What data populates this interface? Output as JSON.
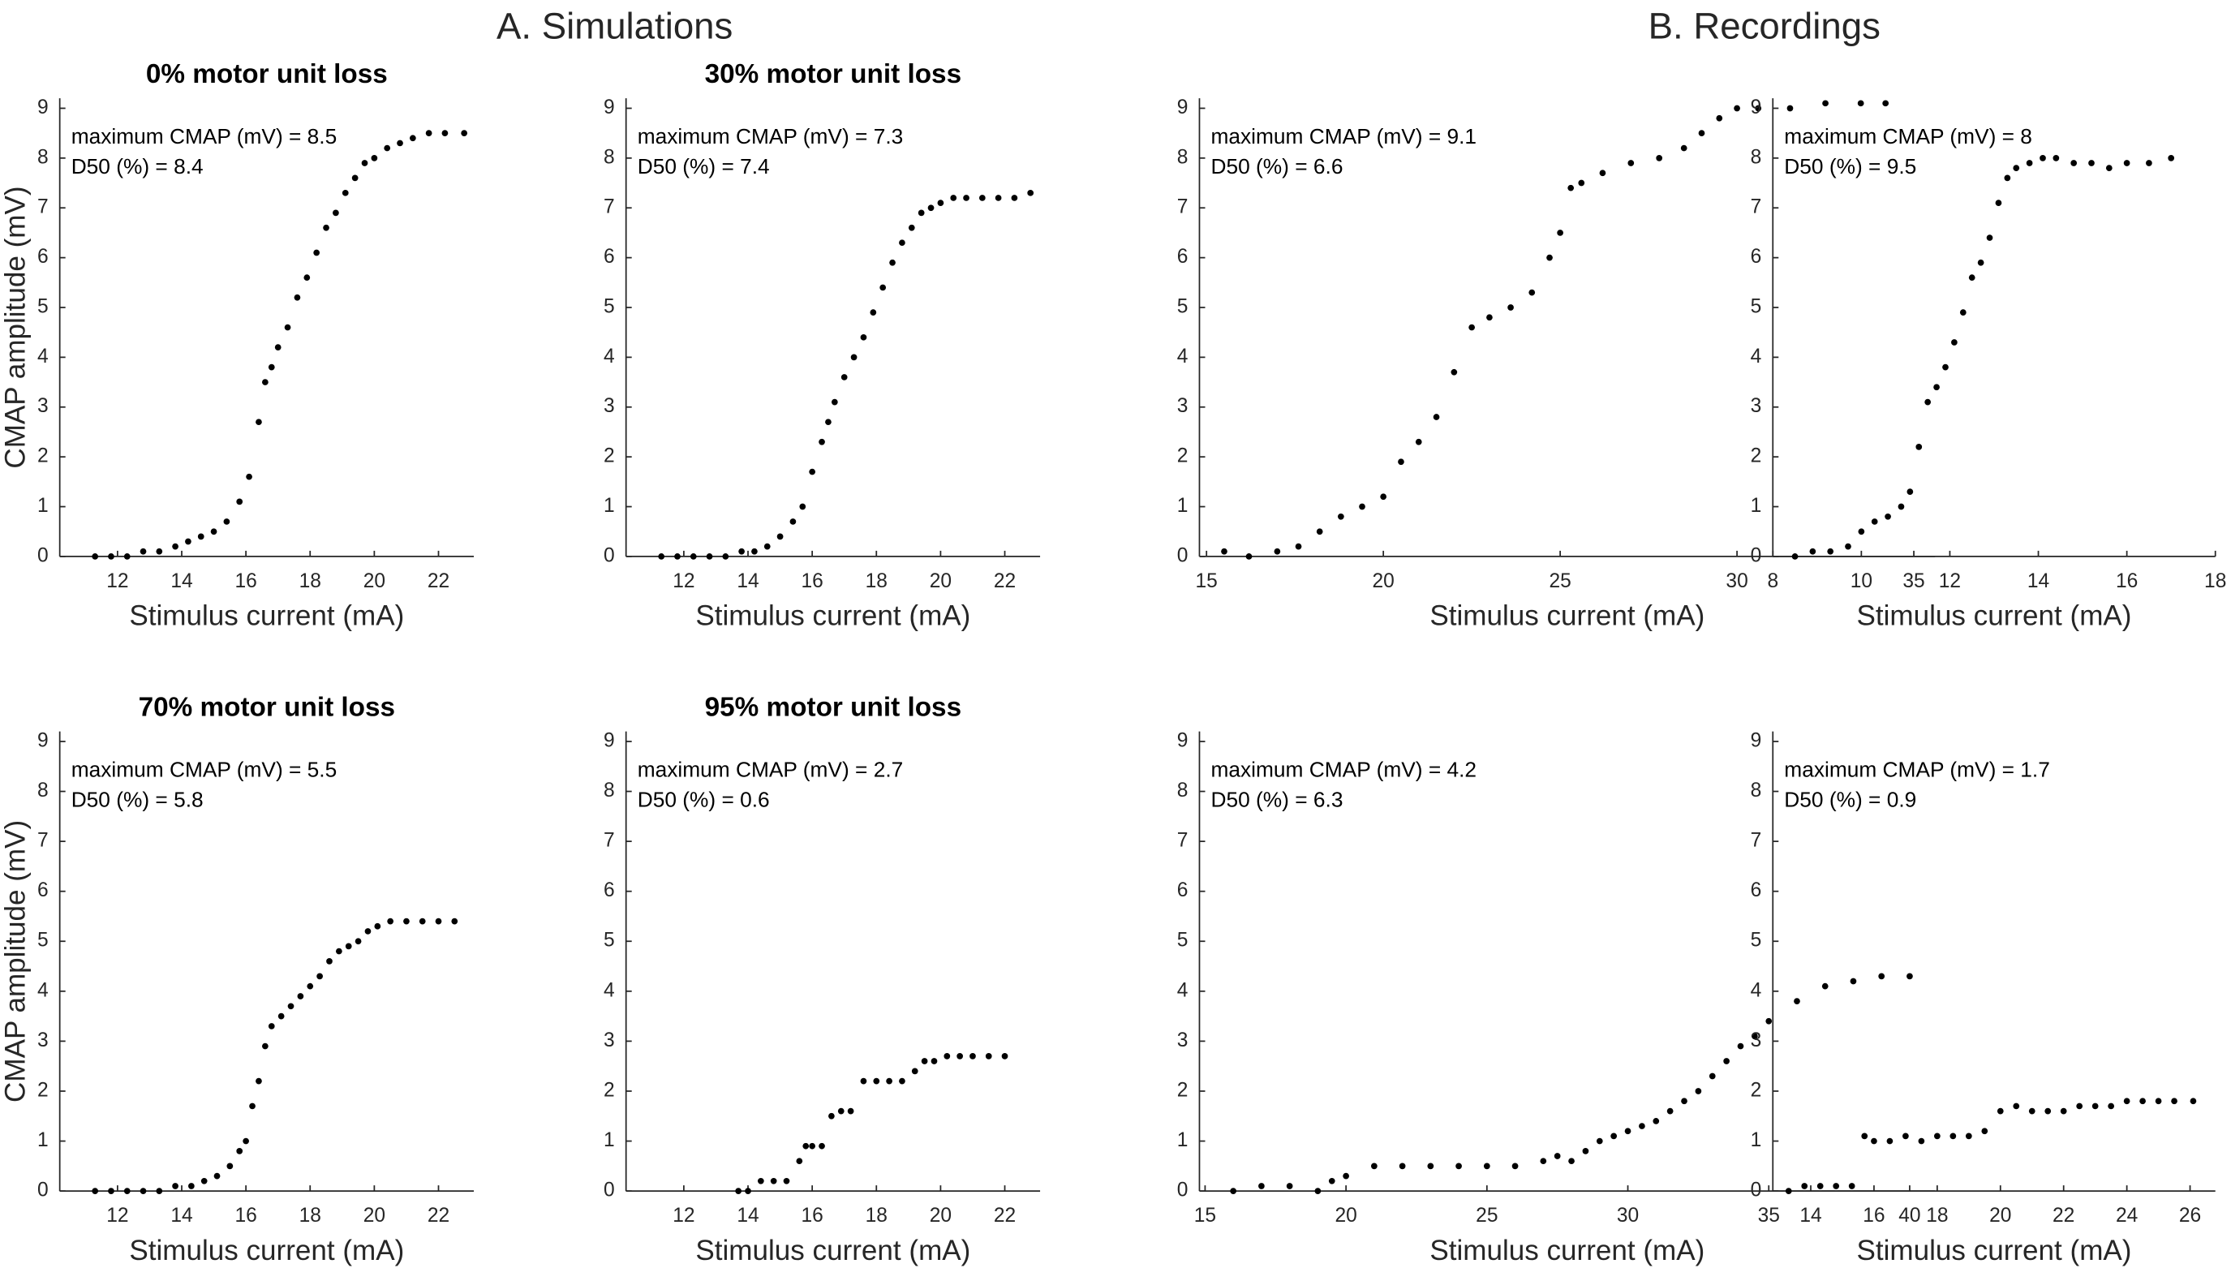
{
  "sections": [
    "A. Simulations",
    "B. Recordings"
  ],
  "chart_data": [
    {
      "type": "scatter",
      "title": "0% motor unit loss",
      "annotations": [
        "maximum CMAP (mV) = 8.5",
        "D50 (%) = 8.4"
      ],
      "xlabel": "Stimulus current (mA)",
      "ylabel": "CMAP amplitude (mV)",
      "color": "#000000",
      "x": [
        11.3,
        11.8,
        12.3,
        12.8,
        13.3,
        13.8,
        14.2,
        14.6,
        15.0,
        15.4,
        15.8,
        16.1,
        16.4,
        16.6,
        16.8,
        17.0,
        17.3,
        17.6,
        17.9,
        18.2,
        18.5,
        18.8,
        19.1,
        19.4,
        19.7,
        20.0,
        20.4,
        20.8,
        21.2,
        21.7,
        22.2,
        22.8
      ],
      "values": [
        0,
        0,
        0,
        0.1,
        0.1,
        0.2,
        0.3,
        0.4,
        0.5,
        0.7,
        1.1,
        1.6,
        2.7,
        3.5,
        3.8,
        4.2,
        4.6,
        5.2,
        5.6,
        6.1,
        6.6,
        6.9,
        7.3,
        7.6,
        7.9,
        8.0,
        8.2,
        8.3,
        8.4,
        8.5,
        8.5,
        8.5
      ],
      "xlim": [
        10.2,
        23.1
      ],
      "ylim": [
        0,
        9.2
      ],
      "xticks": [
        12,
        14,
        16,
        18,
        20,
        22
      ],
      "yticks": [
        0,
        1,
        2,
        3,
        4,
        5,
        6,
        7,
        8,
        9
      ]
    },
    {
      "type": "scatter",
      "title": "30% motor unit loss",
      "annotations": [
        "maximum CMAP (mV) = 7.3",
        "D50 (%) = 7.4"
      ],
      "xlabel": "Stimulus current (mA)",
      "color": "#000000",
      "x": [
        11.3,
        11.8,
        12.3,
        12.8,
        13.3,
        13.8,
        14.2,
        14.6,
        15.0,
        15.4,
        15.7,
        16.0,
        16.3,
        16.5,
        16.7,
        17.0,
        17.3,
        17.6,
        17.9,
        18.2,
        18.5,
        18.8,
        19.1,
        19.4,
        19.7,
        20.0,
        20.4,
        20.8,
        21.3,
        21.8,
        22.3,
        22.8
      ],
      "values": [
        0,
        0,
        0,
        0,
        0,
        0.1,
        0.1,
        0.2,
        0.4,
        0.7,
        1.0,
        1.7,
        2.3,
        2.7,
        3.1,
        3.6,
        4.0,
        4.4,
        4.9,
        5.4,
        5.9,
        6.3,
        6.6,
        6.9,
        7.0,
        7.1,
        7.2,
        7.2,
        7.2,
        7.2,
        7.2,
        7.3
      ],
      "xlim": [
        10.2,
        23.1
      ],
      "ylim": [
        0,
        9.2
      ],
      "xticks": [
        12,
        14,
        16,
        18,
        20,
        22
      ],
      "yticks": [
        0,
        1,
        2,
        3,
        4,
        5,
        6,
        7,
        8,
        9
      ]
    },
    {
      "type": "scatter",
      "annotations": [
        "maximum CMAP (mV) = 9.1",
        "D50 (%) = 6.6"
      ],
      "xlabel": "Stimulus current (mA)",
      "color": "#000000",
      "x": [
        15.5,
        16.2,
        17.0,
        17.6,
        18.2,
        18.8,
        19.4,
        20.0,
        20.5,
        21.0,
        21.5,
        22.0,
        22.5,
        23.0,
        23.6,
        24.2,
        24.7,
        25.0,
        25.3,
        25.6,
        26.2,
        27.0,
        27.8,
        28.5,
        29.0,
        29.5,
        30.0,
        30.6,
        31.5,
        32.5,
        33.5,
        34.2
      ],
      "values": [
        0.1,
        0,
        0.1,
        0.2,
        0.5,
        0.8,
        1.0,
        1.2,
        1.9,
        2.3,
        2.8,
        3.7,
        4.6,
        4.8,
        5.0,
        5.3,
        6.0,
        6.5,
        7.4,
        7.5,
        7.7,
        7.9,
        8.0,
        8.2,
        8.5,
        8.8,
        9.0,
        9.0,
        9.0,
        9.1,
        9.1,
        9.1
      ],
      "xlim": [
        14.8,
        35.6
      ],
      "ylim": [
        0,
        9.2
      ],
      "xticks": [
        15,
        20,
        25,
        30,
        35
      ],
      "yticks": [
        0,
        1,
        2,
        3,
        4,
        5,
        6,
        7,
        8,
        9
      ]
    },
    {
      "type": "scatter",
      "annotations": [
        "maximum CMAP (mV) = 8",
        "D50 (%) = 9.5"
      ],
      "xlabel": "Stimulus current (mA)",
      "color": "#000000",
      "x": [
        8.5,
        8.9,
        9.3,
        9.7,
        10.0,
        10.3,
        10.6,
        10.9,
        11.1,
        11.3,
        11.5,
        11.7,
        11.9,
        12.1,
        12.3,
        12.5,
        12.7,
        12.9,
        13.1,
        13.3,
        13.5,
        13.8,
        14.1,
        14.4,
        14.8,
        15.2,
        15.6,
        16.0,
        16.5,
        17.0
      ],
      "values": [
        0,
        0.1,
        0.1,
        0.2,
        0.5,
        0.7,
        0.8,
        1.0,
        1.3,
        2.2,
        3.1,
        3.4,
        3.8,
        4.3,
        4.9,
        5.6,
        5.9,
        6.4,
        7.1,
        7.6,
        7.8,
        7.9,
        8.0,
        8.0,
        7.9,
        7.9,
        7.8,
        7.9,
        7.9,
        8.0
      ],
      "xlim": [
        8,
        18
      ],
      "ylim": [
        0,
        9.2
      ],
      "xticks": [
        8,
        10,
        12,
        14,
        16,
        18
      ],
      "yticks": [
        0,
        1,
        2,
        3,
        4,
        5,
        6,
        7,
        8,
        9
      ]
    },
    {
      "type": "scatter",
      "title": "70% motor unit loss",
      "annotations": [
        "maximum CMAP (mV) = 5.5",
        "D50 (%) = 5.8"
      ],
      "xlabel": "Stimulus current (mA)",
      "ylabel": "CMAP amplitude (mV)",
      "color": "#000000",
      "x": [
        11.3,
        11.8,
        12.3,
        12.8,
        13.3,
        13.8,
        14.3,
        14.7,
        15.1,
        15.5,
        15.8,
        16.0,
        16.2,
        16.4,
        16.6,
        16.8,
        17.1,
        17.4,
        17.7,
        18.0,
        18.3,
        18.6,
        18.9,
        19.2,
        19.5,
        19.8,
        20.1,
        20.5,
        21.0,
        21.5,
        22.0,
        22.5
      ],
      "values": [
        0,
        0,
        0,
        0,
        0,
        0.1,
        0.1,
        0.2,
        0.3,
        0.5,
        0.8,
        1.0,
        1.7,
        2.2,
        2.9,
        3.3,
        3.5,
        3.7,
        3.9,
        4.1,
        4.3,
        4.6,
        4.8,
        4.9,
        5.0,
        5.2,
        5.3,
        5.4,
        5.4,
        5.4,
        5.4,
        5.4
      ],
      "xlim": [
        10.2,
        23.1
      ],
      "ylim": [
        0,
        9.2
      ],
      "xticks": [
        12,
        14,
        16,
        18,
        20,
        22
      ],
      "yticks": [
        0,
        1,
        2,
        3,
        4,
        5,
        6,
        7,
        8,
        9
      ]
    },
    {
      "type": "scatter",
      "title": "95% motor unit loss",
      "annotations": [
        "maximum CMAP (mV) = 2.7",
        "D50 (%) = 0.6"
      ],
      "xlabel": "Stimulus current (mA)",
      "color": "#000000",
      "x": [
        13.7,
        14.0,
        14.4,
        14.8,
        15.2,
        15.6,
        15.8,
        16.0,
        16.3,
        16.6,
        16.9,
        17.2,
        17.6,
        18.0,
        18.4,
        18.8,
        19.2,
        19.5,
        19.8,
        20.2,
        20.6,
        21.0,
        21.5,
        22.0
      ],
      "values": [
        0,
        0,
        0.2,
        0.2,
        0.2,
        0.6,
        0.9,
        0.9,
        0.9,
        1.5,
        1.6,
        1.6,
        2.2,
        2.2,
        2.2,
        2.2,
        2.4,
        2.6,
        2.6,
        2.7,
        2.7,
        2.7,
        2.7,
        2.7
      ],
      "xlim": [
        10.2,
        23.1
      ],
      "ylim": [
        0,
        9.2
      ],
      "xticks": [
        12,
        14,
        16,
        18,
        20,
        22
      ],
      "yticks": [
        0,
        1,
        2,
        3,
        4,
        5,
        6,
        7,
        8,
        9
      ]
    },
    {
      "type": "scatter",
      "annotations": [
        "maximum CMAP (mV) = 4.2",
        "D50 (%) = 6.3"
      ],
      "xlabel": "Stimulus current (mA)",
      "color": "#000000",
      "x": [
        16.0,
        17.0,
        18.0,
        19.0,
        19.5,
        20.0,
        21.0,
        22.0,
        23.0,
        24.0,
        25.0,
        26.0,
        27.0,
        27.5,
        28.0,
        28.5,
        29.0,
        29.5,
        30.0,
        30.5,
        31.0,
        31.5,
        32.0,
        32.5,
        33.0,
        33.5,
        34.0,
        34.5,
        35.0,
        36.0,
        37.0,
        38.0,
        39.0,
        40.0
      ],
      "values": [
        0,
        0.1,
        0.1,
        0,
        0.2,
        0.3,
        0.5,
        0.5,
        0.5,
        0.5,
        0.5,
        0.5,
        0.6,
        0.7,
        0.6,
        0.8,
        1.0,
        1.1,
        1.2,
        1.3,
        1.4,
        1.6,
        1.8,
        2.0,
        2.3,
        2.6,
        2.9,
        3.1,
        3.4,
        3.8,
        4.1,
        4.2,
        4.3,
        4.3
      ],
      "xlim": [
        14.8,
        40.9
      ],
      "ylim": [
        0,
        9.2
      ],
      "xticks": [
        15,
        20,
        25,
        30,
        35,
        40
      ],
      "yticks": [
        0,
        1,
        2,
        3,
        4,
        5,
        6,
        7,
        8,
        9
      ]
    },
    {
      "type": "scatter",
      "annotations": [
        "maximum CMAP (mV) = 1.7",
        "D50 (%) = 0.9"
      ],
      "xlabel": "Stimulus current (mA)",
      "color": "#000000",
      "x": [
        13.3,
        13.8,
        14.3,
        14.8,
        15.3,
        15.7,
        16.0,
        16.5,
        17.0,
        17.5,
        18.0,
        18.5,
        19.0,
        19.5,
        20.0,
        20.5,
        21.0,
        21.5,
        22.0,
        22.5,
        23.0,
        23.5,
        24.0,
        24.5,
        25.0,
        25.5,
        26.1
      ],
      "values": [
        0,
        0.1,
        0.1,
        0.1,
        0.1,
        1.1,
        1.0,
        1.0,
        1.1,
        1.0,
        1.1,
        1.1,
        1.1,
        1.2,
        1.6,
        1.7,
        1.6,
        1.6,
        1.6,
        1.7,
        1.7,
        1.7,
        1.8,
        1.8,
        1.8,
        1.8,
        1.8
      ],
      "xlim": [
        12.8,
        26.8
      ],
      "ylim": [
        0,
        9.2
      ],
      "xticks": [
        14,
        16,
        18,
        20,
        22,
        24,
        26
      ],
      "yticks": [
        0,
        1,
        2,
        3,
        4,
        5,
        6,
        7,
        8,
        9
      ]
    }
  ]
}
